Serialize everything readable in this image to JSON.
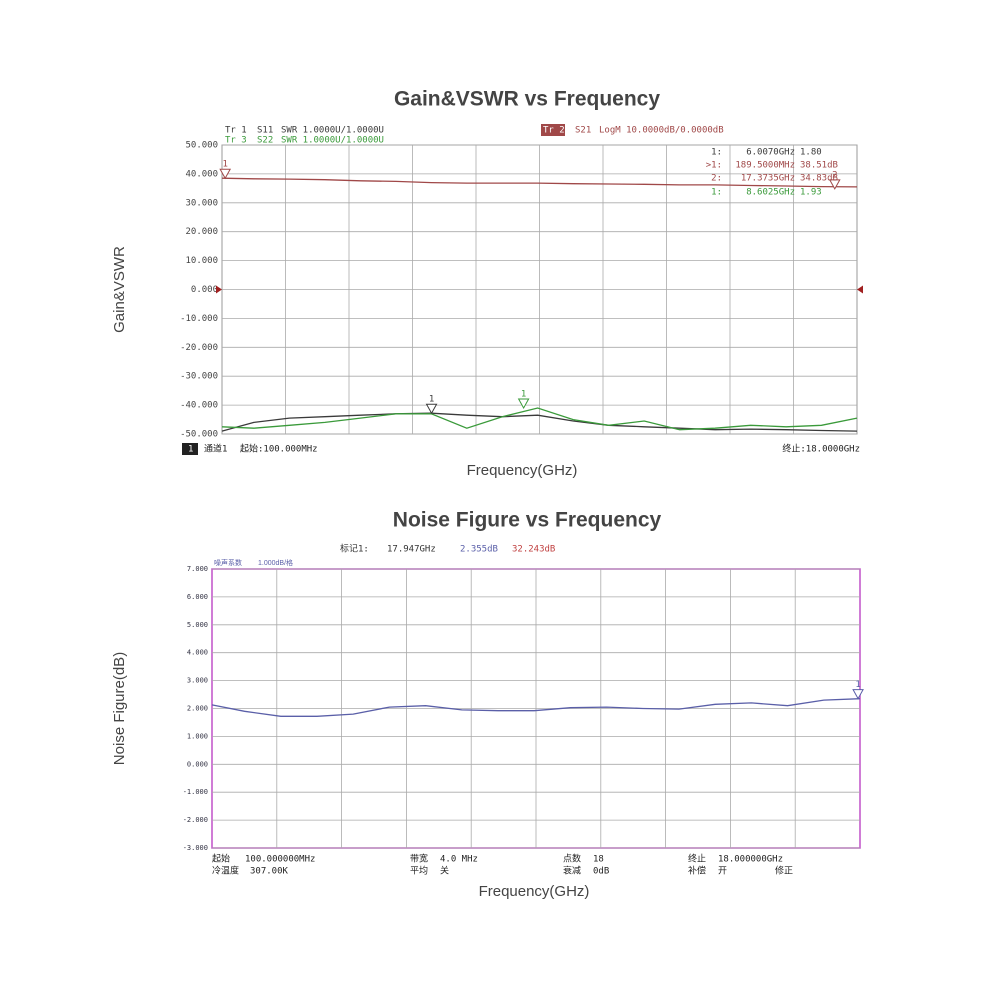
{
  "chart_data": [
    {
      "type": "line",
      "title": "Gain&VSWR vs Frequency",
      "y_label": "Gain&VSWR",
      "x_label": "Frequency(GHz)",
      "xlim": [
        0.1,
        18
      ],
      "ylim": [
        -50,
        50
      ],
      "yticks": [
        {
          "value": 50,
          "label": "50.000"
        },
        {
          "value": 40,
          "label": "40.000"
        },
        {
          "value": 30,
          "label": "30.000"
        },
        {
          "value": 20,
          "label": "20.000"
        },
        {
          "value": 10,
          "label": "10.000"
        },
        {
          "value": 0,
          "label": "0.000"
        },
        {
          "value": -10,
          "label": "-10.000"
        },
        {
          "value": -20,
          "label": "-20.000"
        },
        {
          "value": -30,
          "label": "-30.000"
        },
        {
          "value": -40,
          "label": "-40.000"
        },
        {
          "value": -50,
          "label": "-50.000"
        }
      ],
      "x": [
        0.1,
        1,
        2,
        3,
        4,
        5,
        6,
        7,
        8,
        9,
        10,
        11,
        12,
        13,
        14,
        15,
        16,
        17,
        18
      ],
      "series": [
        {
          "name": "S11",
          "trace": "Tr 1",
          "format": "SWR 1.0000U/1.0000U",
          "color": "#3a3a3a",
          "values": [
            -49,
            -46,
            -44.5,
            -44,
            -43.5,
            -43,
            -42.8,
            -43.5,
            -44,
            -43.5,
            -45.5,
            -47,
            -47.5,
            -48,
            -48.5,
            -48.3,
            -48.5,
            -48.8,
            -49
          ]
        },
        {
          "name": "S21",
          "trace": "Tr 2",
          "format": "LogM 10.0000dB/0.0000dB",
          "color": "#a04848",
          "values": [
            38.5,
            38.3,
            38.2,
            38.0,
            37.6,
            37.4,
            37.0,
            36.8,
            36.8,
            36.8,
            36.6,
            36.5,
            36.4,
            36.2,
            36.2,
            36.0,
            35.8,
            35.6,
            35.5
          ]
        },
        {
          "name": "S22",
          "trace": "Tr 3",
          "format": "SWR 1.0000U/1.0000U",
          "color": "#3a9a3a",
          "values": [
            -47.5,
            -48,
            -47,
            -46,
            -44.5,
            -43,
            -43,
            -48,
            -44,
            -41,
            -45,
            -47,
            -45.5,
            -48.5,
            -48,
            -47,
            -47.5,
            -47,
            -44.5
          ]
        }
      ],
      "markers": [
        {
          "label": "1",
          "series": 1,
          "x": 0.1895,
          "y": 38.51
        },
        {
          "label": "2",
          "series": 1,
          "x": 17.3735,
          "y": 34.83
        },
        {
          "label": "1",
          "series": 0,
          "x": 6.007,
          "y": -42.8
        },
        {
          "label": "1",
          "series": 2,
          "x": 8.6025,
          "y": -41
        }
      ],
      "marker_table": [
        [
          "1:",
          "6.0070GHz",
          "1.80"
        ],
        [
          ">1:",
          "189.5000MHz",
          "38.51dB"
        ],
        [
          "2:",
          "17.3735GHz",
          "34.83dB"
        ],
        [
          "1:",
          "8.6025GHz",
          "1.93"
        ]
      ],
      "footer_texts": [
        "1",
        "通道1",
        "起始:100.000MHz",
        "终止:18.0000GHz"
      ]
    },
    {
      "type": "line",
      "title": "Noise Figure vs Frequency",
      "y_label": "Noise Figure(dB)",
      "x_label": "Frequency(GHz)",
      "xlim": [
        0.1,
        18
      ],
      "ylim": [
        -3,
        7
      ],
      "yticks": [
        {
          "value": 7,
          "label": "7.000"
        },
        {
          "value": 6,
          "label": "6.000"
        },
        {
          "value": 5,
          "label": "5.000"
        },
        {
          "value": 4,
          "label": "4.000"
        },
        {
          "value": 3,
          "label": "3.000"
        },
        {
          "value": 2,
          "label": "2.000"
        },
        {
          "value": 1,
          "label": "1.000"
        },
        {
          "value": 0,
          "label": "0.000"
        },
        {
          "value": -1,
          "label": "-1.000"
        },
        {
          "value": -2,
          "label": "-2.000"
        },
        {
          "value": -3,
          "label": "-3.000"
        }
      ],
      "x": [
        0.1,
        1,
        2,
        3,
        4,
        5,
        6,
        7,
        8,
        9,
        10,
        11,
        12,
        13,
        14,
        15,
        16,
        17,
        18
      ],
      "series": [
        {
          "name": "噪声系数",
          "format": "1.000dB/格",
          "color": "#5a5fa8",
          "values": [
            2.13,
            1.9,
            1.72,
            1.72,
            1.8,
            2.05,
            2.1,
            1.95,
            1.92,
            1.92,
            2.03,
            2.05,
            2.0,
            1.98,
            2.15,
            2.2,
            2.1,
            2.3,
            2.35
          ]
        }
      ],
      "markers": [
        {
          "label": "1",
          "series": 0,
          "x": 17.947,
          "y": 2.355
        }
      ],
      "header_texts": [
        "标记1:",
        "17.947GHz",
        "2.355dB",
        "32.243dB"
      ],
      "footer_texts": [
        "起始",
        "100.000000MHz",
        "带宽",
        "4.0  MHz",
        "点数",
        "18",
        "终止",
        "18.000000GHz",
        "冷温度",
        "307.00K",
        "平均",
        "关",
        "衰减",
        "0dB",
        "补偿",
        "开",
        "修正"
      ]
    }
  ]
}
